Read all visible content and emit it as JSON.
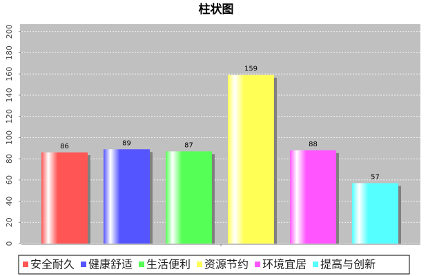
{
  "chart_data": {
    "type": "bar",
    "title": "柱状图",
    "categories": [
      null
    ],
    "series": [
      {
        "name": "安全耐久",
        "color": "#ff5555",
        "values": [
          86
        ]
      },
      {
        "name": "健康舒适",
        "color": "#5555ff",
        "values": [
          89
        ]
      },
      {
        "name": "生活便利",
        "color": "#55ff55",
        "values": [
          87
        ]
      },
      {
        "name": "资源节约",
        "color": "#ffff55",
        "values": [
          159
        ]
      },
      {
        "name": "环境宜居",
        "color": "#ff55ff",
        "values": [
          88
        ]
      },
      {
        "name": "提高与创新",
        "color": "#55ffff",
        "values": [
          57
        ]
      }
    ],
    "ylim": [
      0,
      207
    ],
    "yticks": [
      0,
      20,
      40,
      60,
      80,
      100,
      120,
      140,
      160,
      180,
      200
    ],
    "grid": true,
    "legend": "bottom"
  }
}
